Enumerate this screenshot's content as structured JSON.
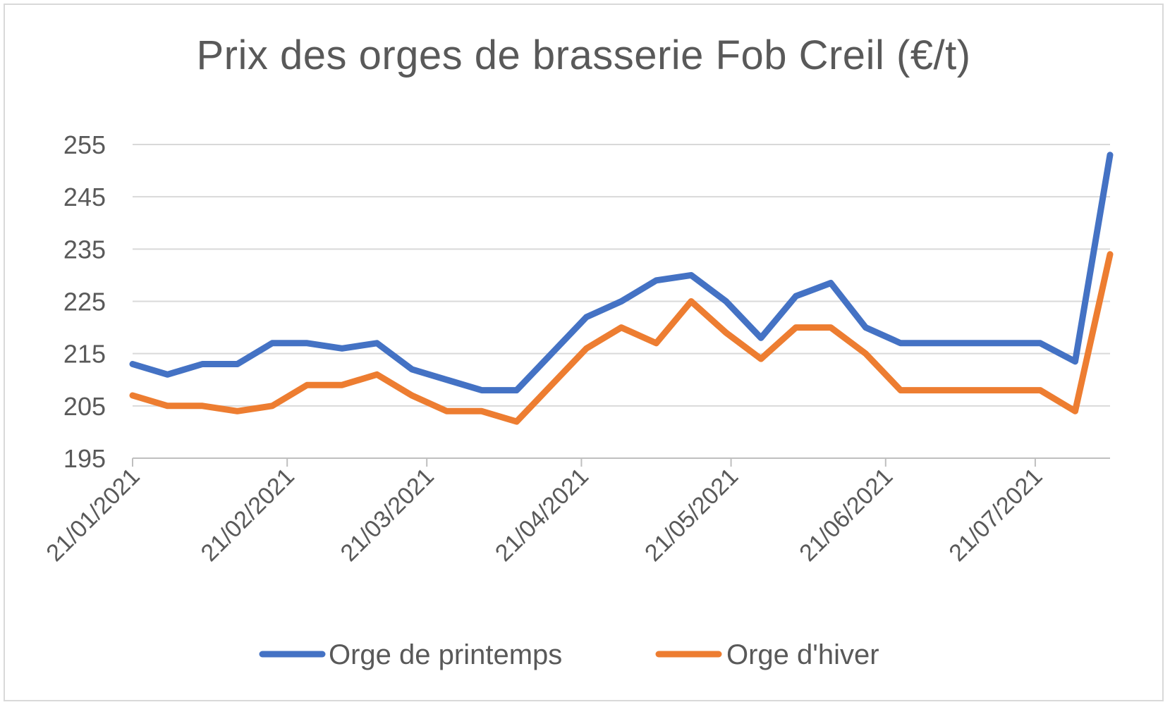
{
  "chart_data": {
    "type": "line",
    "title": "Prix des orges de brasserie Fob Creil (€/t)",
    "xlabel": "",
    "ylabel": "",
    "ylim": [
      195,
      255
    ],
    "yticks": [
      195,
      205,
      215,
      225,
      235,
      245,
      255
    ],
    "grid": true,
    "legend_position": "bottom",
    "x_tick_labels": [
      "21/01/2021",
      "21/02/2021",
      "21/03/2021",
      "21/04/2021",
      "21/05/2021",
      "21/06/2021",
      "21/07/2021"
    ],
    "x": [
      "2021-01-21",
      "2021-01-28",
      "2021-02-04",
      "2021-02-11",
      "2021-02-18",
      "2021-02-25",
      "2021-03-04",
      "2021-03-11",
      "2021-03-18",
      "2021-03-25",
      "2021-04-01",
      "2021-04-08",
      "2021-04-15",
      "2021-04-22",
      "2021-04-29",
      "2021-05-06",
      "2021-05-13",
      "2021-05-20",
      "2021-05-27",
      "2021-06-03",
      "2021-06-10",
      "2021-06-17",
      "2021-06-24",
      "2021-07-01",
      "2021-07-08",
      "2021-07-15",
      "2021-07-22",
      "2021-07-29",
      "2021-08-05"
    ],
    "series": [
      {
        "name": "Orge de printemps",
        "color": "#4472c4",
        "values": [
          213,
          211,
          213,
          213,
          217,
          217,
          216,
          217,
          212,
          210,
          208,
          208,
          215,
          222,
          225,
          229,
          230,
          225,
          218,
          226,
          228.5,
          220,
          217,
          217,
          217,
          217,
          217,
          213.5,
          253
        ]
      },
      {
        "name": "Orge d'hiver",
        "color": "#ed7d31",
        "values": [
          207,
          205,
          205,
          204,
          205,
          209,
          209,
          211,
          207,
          204,
          204,
          202,
          209,
          216,
          220,
          217,
          225,
          219,
          214,
          220,
          220,
          215,
          208,
          208,
          208,
          208,
          208,
          204,
          234
        ]
      }
    ]
  }
}
